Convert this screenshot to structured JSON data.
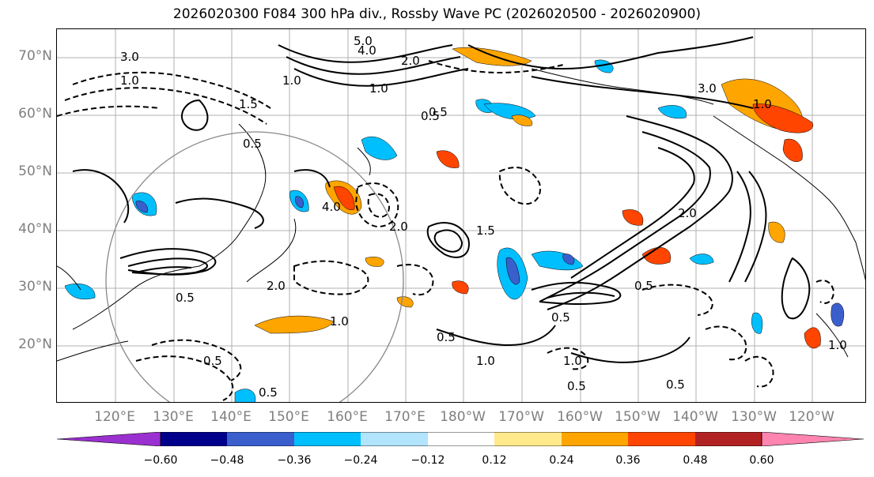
{
  "title": "2026020300 F084 300 hPa div., Rossby Wave PC (2026020500 - 2026020900)",
  "lat_labels": [
    "70°N",
    "60°N",
    "50°N",
    "40°N",
    "30°N",
    "20°N"
  ],
  "lon_labels": [
    "120°E",
    "130°E",
    "140°E",
    "150°E",
    "160°E",
    "170°E",
    "180°W",
    "170°W",
    "160°W",
    "150°W",
    "140°W",
    "130°W",
    "120°W"
  ],
  "colorbar": {
    "ticks": [
      "−0.60",
      "−0.48",
      "−0.36",
      "−0.24",
      "−0.12",
      "0.12",
      "0.24",
      "0.36",
      "0.48",
      "0.60"
    ],
    "colors": [
      "#9b30d0",
      "#00008b",
      "#3a5fcd",
      "#00bfff",
      "#b2e4fc",
      "#ffffff",
      "#ffe98a",
      "#ffa500",
      "#ff4500",
      "#b22222",
      "#ff85b0"
    ]
  },
  "contour_labels": [
    "5.0",
    "4.0",
    "3.0",
    "2.0",
    "1.5",
    "1.0",
    "0.5",
    "0.5",
    "1.0",
    "2.0",
    "3.0",
    "4.0",
    "1.0",
    "0.5",
    "1.5",
    "2.0",
    "0.5",
    "1.0",
    "0.5",
    "1.0",
    "0.5",
    "2.0",
    "0.5",
    "1.0",
    "0.5",
    "0.5",
    "1.0",
    "0.5",
    "0.5",
    "1.0"
  ]
}
